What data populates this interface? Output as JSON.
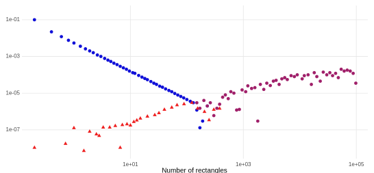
{
  "chart_data": {
    "type": "scatter",
    "x_label": "Number of rectangles",
    "log_x": true,
    "log_y": true,
    "grid": true,
    "xlim": [
      0.12,
      160000
    ],
    "ylim": [
      2.7e-09,
      0.6
    ],
    "xticks": [
      {
        "value": 10,
        "label": "1e+01"
      },
      {
        "value": 1000,
        "label": "1e+03"
      },
      {
        "value": 100000,
        "label": "1e+05"
      }
    ],
    "yticks": [
      {
        "value": 1e-07,
        "label": "1e-07"
      },
      {
        "value": 1e-05,
        "label": "1e-05"
      },
      {
        "value": 0.001,
        "label": "1e-03"
      },
      {
        "value": 0.1,
        "label": "1e-01"
      }
    ],
    "series": [
      {
        "color": "#1010d8",
        "marker": "circle",
        "x": [
          0.2,
          0.4,
          0.6,
          0.8,
          1.0,
          1.3,
          1.6,
          1.9,
          2.2,
          2.6,
          3.0,
          3.5,
          4.0,
          4.5,
          5.1,
          5.8,
          6.6,
          7.5,
          8.5,
          9.6,
          11,
          12,
          14,
          16,
          18,
          20,
          23,
          26,
          29,
          33,
          37,
          42,
          48,
          54,
          61,
          69,
          78,
          88,
          100,
          115,
          130,
          150,
          170,
          190,
          230
        ],
        "values": [
          0.1,
          0.022,
          0.012,
          0.0076,
          0.0054,
          0.0036,
          0.0026,
          0.002,
          0.0016,
          0.0012,
          0.001,
          0.00078,
          0.00063,
          0.00053,
          0.00043,
          0.00036,
          0.00029,
          0.00024,
          0.0002,
          0.00016,
          0.00013,
          0.00012,
          9.2e-05,
          7.5e-05,
          6.3e-05,
          5.4e-05,
          4.3e-05,
          3.5e-05,
          3e-05,
          2.4e-05,
          2.1e-05,
          1.7e-05,
          1.4e-05,
          1.2e-05,
          9.6e-06,
          7.9e-06,
          6.6e-06,
          5.5e-06,
          4.5e-06,
          3.6e-06,
          3e-06,
          1.2e-06,
          1.3e-07,
          3e-07,
          2e-06
        ]
      },
      {
        "color": "#ee2020",
        "marker": "triangle",
        "x": [
          0.2,
          0.71,
          1.0,
          1.5,
          1.9,
          2.5,
          2.8,
          3.3,
          4.3,
          5.4,
          6.6,
          7.2,
          8.7,
          10,
          11.5,
          13,
          15,
          20,
          27,
          32,
          40,
          54,
          67,
          89,
          123,
          155,
          205,
          247,
          300,
          380
        ],
        "values": [
          1.1e-08,
          1.8e-08,
          1.3e-07,
          7.4e-09,
          8.3e-08,
          5.9e-08,
          4.9e-08,
          1.4e-07,
          1.4e-07,
          1.7e-07,
          1.1e-08,
          1.9e-07,
          2.1e-07,
          1.8e-07,
          2.8e-07,
          3.4e-07,
          4.3e-07,
          5.5e-07,
          6.6e-07,
          8.5e-07,
          1.3e-06,
          1.7e-06,
          2.3e-06,
          2.6e-06,
          3.1e-06,
          1.5e-06,
          1e-06,
          3.5e-07,
          1.3e-06,
          1.5e-06
        ]
      },
      {
        "color": "#a0206a",
        "marker": "circle",
        "x": [
          150,
          170,
          200,
          230,
          260,
          300,
          340,
          380,
          430,
          480,
          540,
          600,
          680,
          760,
          850,
          950,
          1100,
          1200,
          1400,
          1600,
          1800,
          2000,
          2300,
          2600,
          3000,
          3400,
          3800,
          4300,
          4800,
          5400,
          6000,
          7000,
          8000,
          9000,
          11000,
          12000,
          14000,
          16000,
          18000,
          20000,
          23000,
          26000,
          30000,
          34000,
          38000,
          43000,
          48000,
          54000,
          61000,
          69000,
          78000,
          88000,
          98000
        ],
        "values": [
          3e-06,
          1.5e-06,
          4e-06,
          2e-06,
          3e-06,
          6e-07,
          1.5e-06,
          2.5e-06,
          6e-06,
          8e-06,
          5e-06,
          1.2e-05,
          1e-05,
          1.2e-06,
          1.3e-06,
          1.5e-05,
          1.2e-05,
          2.5e-05,
          1.8e-05,
          2e-05,
          3e-07,
          3e-05,
          1.6e-05,
          3.5e-05,
          2.6e-05,
          4.5e-05,
          5e-05,
          3e-05,
          6e-05,
          7e-05,
          5.5e-05,
          9e-05,
          8e-05,
          0.0001,
          6e-05,
          9e-05,
          0.0001,
          3e-05,
          0.00013,
          8e-05,
          4.5e-05,
          0.00014,
          0.0001,
          0.00013,
          9e-05,
          0.00012,
          7e-05,
          0.0002,
          0.00016,
          0.00018,
          0.00016,
          0.00012,
          3.5e-05
        ]
      }
    ]
  }
}
